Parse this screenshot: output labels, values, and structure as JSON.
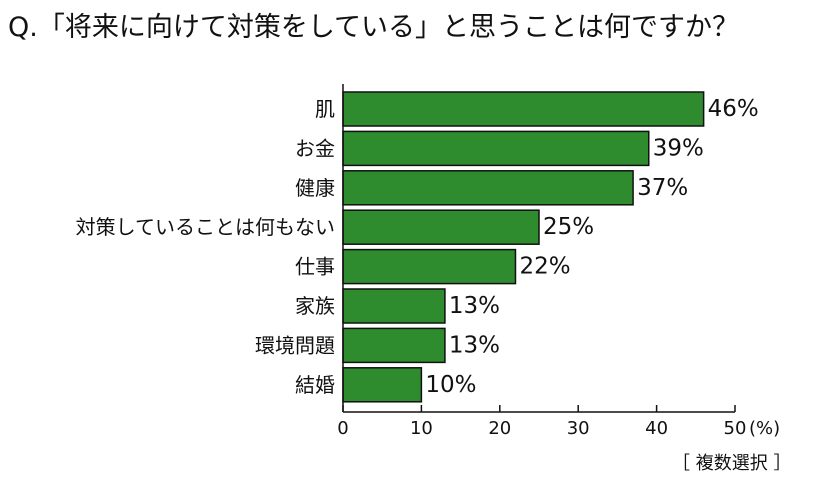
{
  "question": "Q.「将来に向けて対策をしている」と思うことは何ですか？",
  "note": "［ 複数選択 ］",
  "colors": {
    "bar_fill": "#2E8B2E",
    "bar_stroke": "#111111",
    "text": "#111111"
  },
  "chart_data": {
    "type": "bar",
    "orientation": "horizontal",
    "title": "Q.「将来に向けて対策をしている」と思うことは何ですか？",
    "xlabel": "",
    "ylabel": "",
    "unit_label": "(%)",
    "categories": [
      "肌",
      "お金",
      "健康",
      "対策していることは何もない",
      "仕事",
      "家族",
      "環境問題",
      "結婚"
    ],
    "values": [
      46,
      39,
      37,
      25,
      22,
      13,
      13,
      10
    ],
    "value_labels": [
      "46%",
      "39%",
      "37%",
      "25%",
      "22%",
      "13%",
      "13%",
      "10%"
    ],
    "xlim": [
      0,
      50
    ],
    "xticks": [
      0,
      10,
      20,
      30,
      40,
      50
    ],
    "xtick_labels": [
      "0",
      "10",
      "20",
      "30",
      "40",
      "50"
    ],
    "grid": false,
    "legend": "none"
  }
}
